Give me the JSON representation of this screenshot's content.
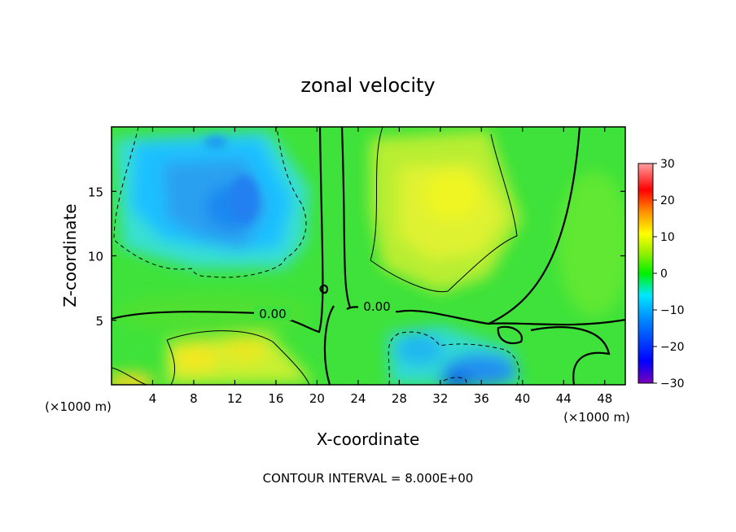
{
  "chart_data": {
    "type": "heatmap",
    "title": "zonal velocity",
    "xlabel": "X-coordinate",
    "ylabel": "Z-coordinate",
    "x_unit_left": "(×1000 m)",
    "x_unit_right": "(×1000 m)",
    "xlim": [
      0,
      50
    ],
    "ylim": [
      0,
      20
    ],
    "xticks": [
      4,
      8,
      12,
      16,
      20,
      24,
      28,
      32,
      36,
      40,
      44,
      48
    ],
    "yticks": [
      5,
      10,
      15
    ],
    "colorbar": {
      "ticks": [
        30,
        20,
        10,
        0,
        -10,
        -20,
        -30
      ],
      "range": [
        -30,
        30
      ],
      "colors": [
        "#7a00b8",
        "#0000ff",
        "#0090ff",
        "#00e8ff",
        "#00f000",
        "#ffff00",
        "#ff9000",
        "#ff0000",
        "#ffa0a0"
      ]
    },
    "contour_interval_label": "CONTOUR INTERVAL = 8.000E+00",
    "contour_labels": [
      "0.00",
      "0.00"
    ],
    "regions": [
      {
        "name": "negative core upper left",
        "x": 11,
        "z": 14,
        "value": -12
      },
      {
        "name": "negative upper left outer",
        "x": 9,
        "z": 12,
        "value": -6
      },
      {
        "name": "positive upper right",
        "x": 31,
        "z": 14,
        "value": 8
      },
      {
        "name": "positive lower left",
        "x": 10,
        "z": 2,
        "value": 7
      },
      {
        "name": "negative lower middle",
        "x": 33,
        "z": 1,
        "value": -12
      },
      {
        "name": "background",
        "x": 20,
        "z": 10,
        "value": 2
      }
    ]
  }
}
